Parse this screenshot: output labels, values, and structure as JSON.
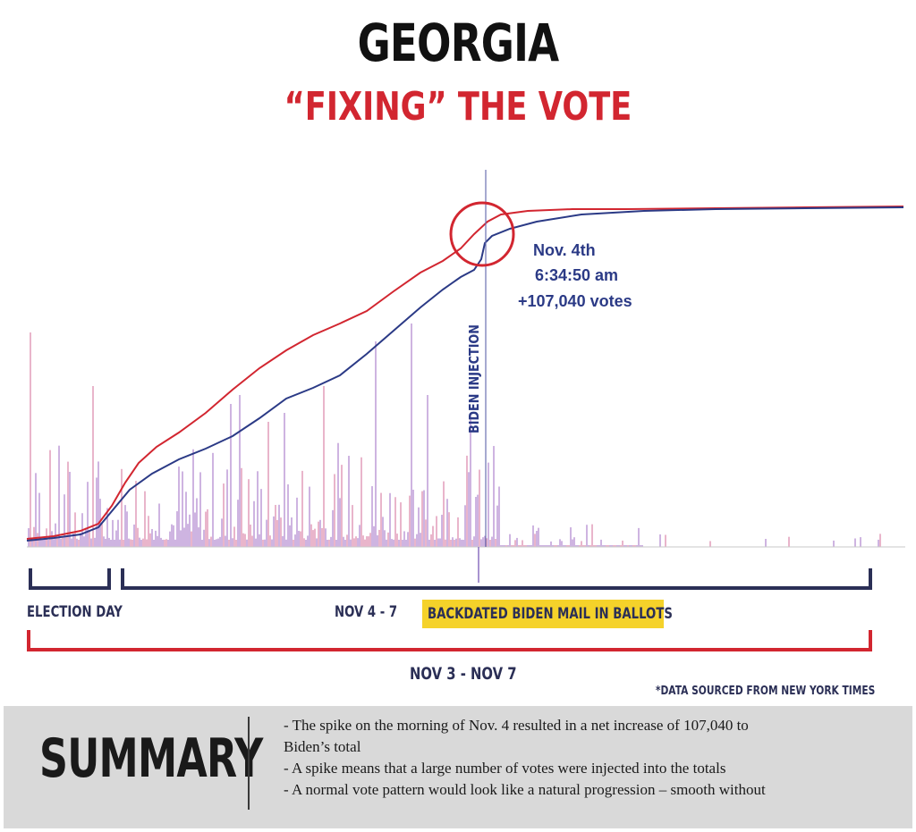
{
  "title": "GEORGIA",
  "subtitle": "“FIXING” THE VOTE",
  "colors": {
    "red": "#d22630",
    "blue": "#2b3a86",
    "spike": "#a878c8",
    "highlight": "#f5d22a"
  },
  "chart_data": {
    "type": "line",
    "title": "GEORGIA",
    "subtitle": "“FIXING” THE VOTE",
    "x_axis_markers": [
      "ELECTION DAY",
      "NOV 4 - 7",
      "NOV 3 - NOV 7"
    ],
    "series": [],
    "annotations": {
      "spike_time": [
        "Nov. 4th",
        "6:34:50 am",
        "+107,040 votes"
      ],
      "vertical_label": "BIDEN INJECTION",
      "highlight_label": "BACKDATED BIDEN MAIL IN BALLOTS"
    },
    "grid": false,
    "legend": "none"
  },
  "labels": {
    "election_day": "ELECTION DAY",
    "nov4_7": "NOV 4 - 7",
    "backdated": "BACKDATED BIDEN MAIL IN BALLOTS",
    "nov3_7": "NOV 3 - NOV 7",
    "source": "*DATA SOURCED FROM NEW YORK TIMES"
  },
  "summary": {
    "title": "SUMMARY",
    "lines": [
      "- The spike on the morning of Nov. 4 resulted in a net increase of 107,040 to",
      "Biden’s total",
      "- A spike means that a large number of votes were injected into the totals",
      "- A normal vote pattern would look like a natural progression – smooth without"
    ]
  }
}
